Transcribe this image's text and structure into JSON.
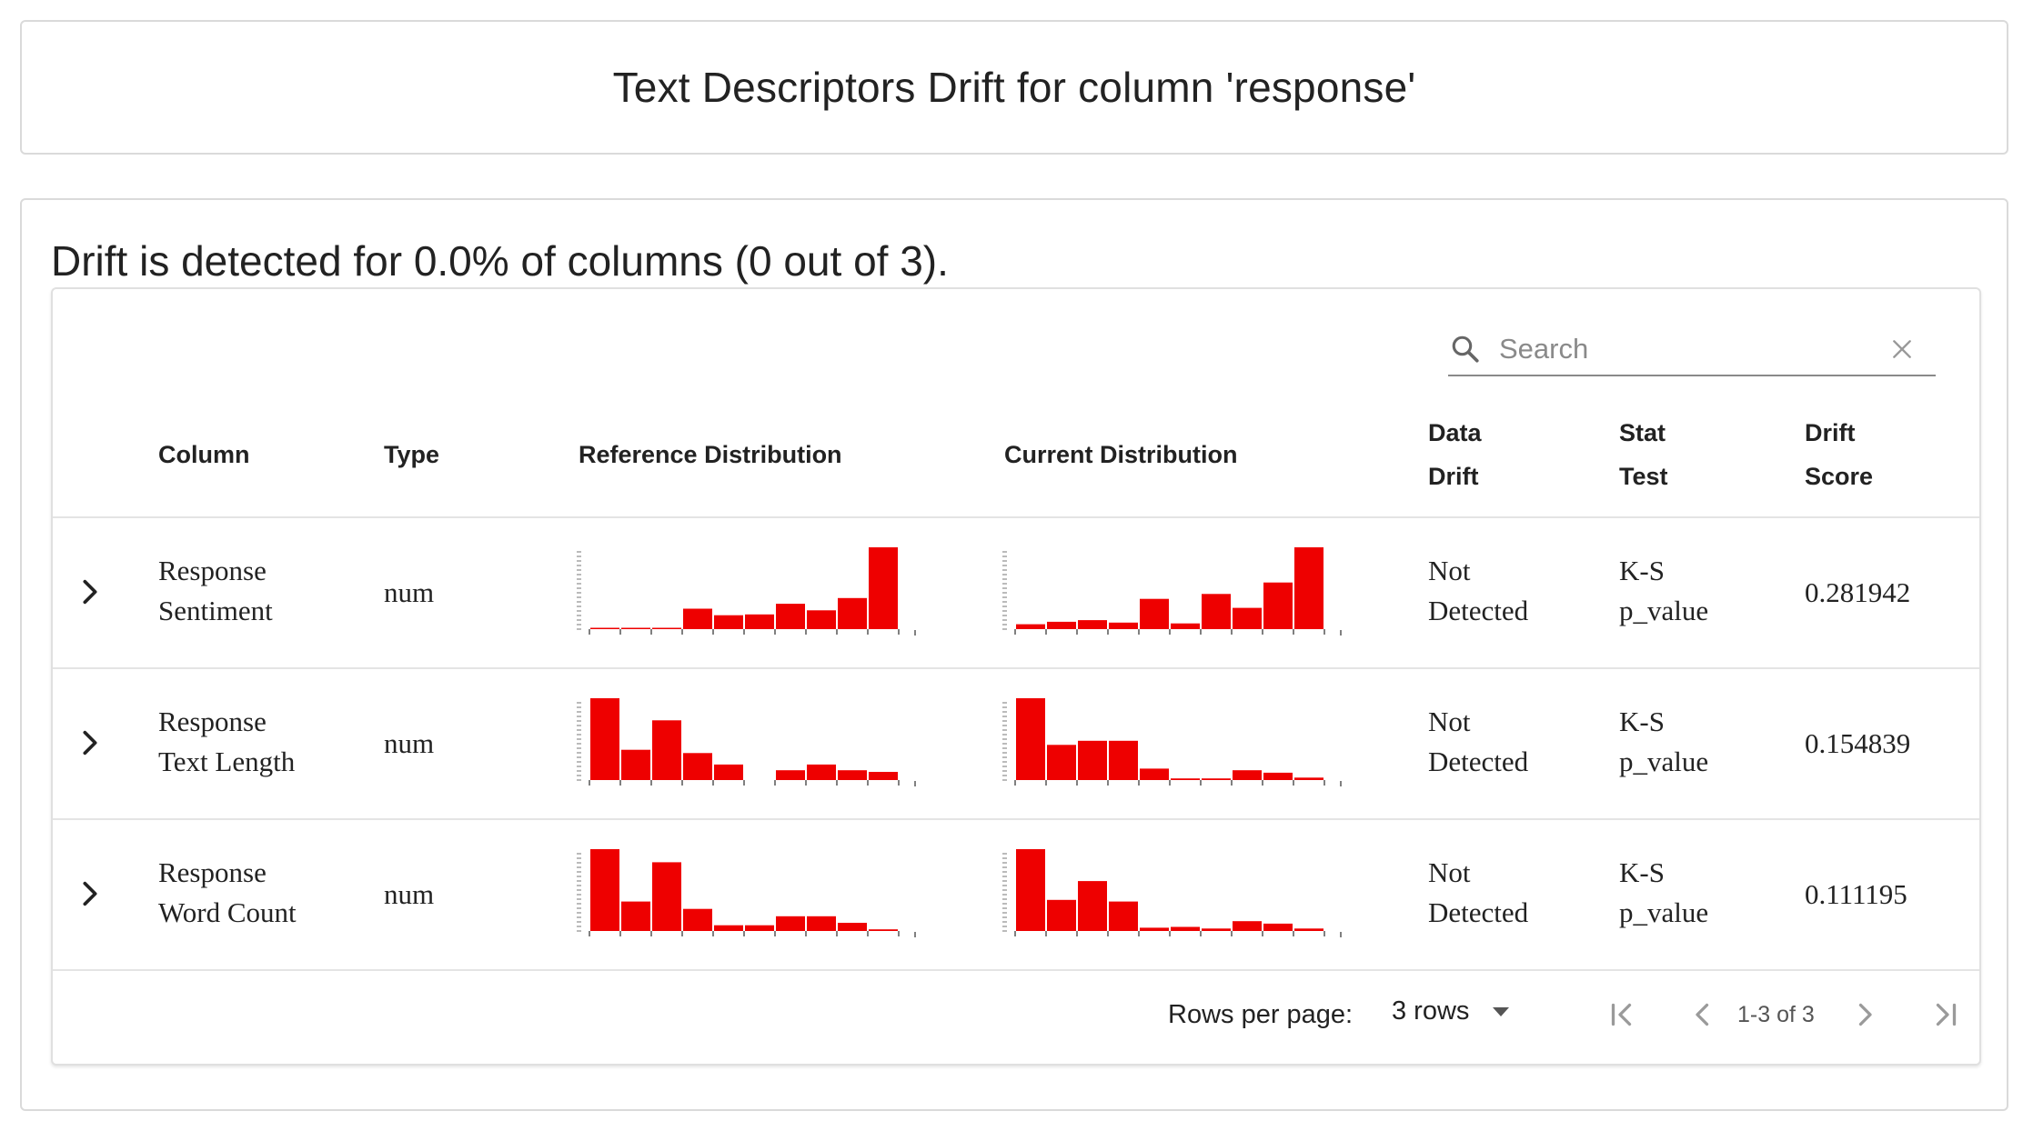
{
  "title": "Text Descriptors Drift for column 'response'",
  "summary": "Drift is detected for 0.0% of columns (0 out of 3).",
  "search": {
    "placeholder": "Search",
    "value": ""
  },
  "columns": {
    "column": "Column",
    "type": "Type",
    "reference_distribution": "Reference Distribution",
    "current_distribution": "Current Distribution",
    "data_drift": [
      "Data",
      "Drift"
    ],
    "stat_test": [
      "Stat",
      "Test"
    ],
    "drift_score": [
      "Drift",
      "Score"
    ]
  },
  "rows": [
    {
      "column": [
        "Response",
        "Sentiment"
      ],
      "type": "num",
      "reference_hist": [
        1,
        1,
        1,
        25,
        17,
        18,
        31,
        23,
        38,
        100
      ],
      "current_hist": [
        6,
        9,
        11,
        8,
        37,
        7,
        43,
        26,
        57,
        100
      ],
      "data_drift": [
        "Not",
        "Detected"
      ],
      "stat_test": [
        "K-S",
        "p_value"
      ],
      "drift_score": "0.281942"
    },
    {
      "column": [
        "Response",
        "Text Length"
      ],
      "type": "num",
      "reference_hist": [
        100,
        37,
        73,
        33,
        19,
        0,
        12,
        19,
        12,
        10
      ],
      "current_hist": [
        100,
        43,
        48,
        48,
        14,
        2,
        2,
        12,
        9,
        3
      ],
      "data_drift": [
        "Not",
        "Detected"
      ],
      "stat_test": [
        "K-S",
        "p_value"
      ],
      "drift_score": "0.154839"
    },
    {
      "column": [
        "Response",
        "Word Count"
      ],
      "type": "num",
      "reference_hist": [
        100,
        36,
        84,
        27,
        7,
        7,
        18,
        18,
        10,
        2
      ],
      "current_hist": [
        100,
        38,
        61,
        36,
        4,
        5,
        3,
        12,
        9,
        3
      ],
      "data_drift": [
        "Not",
        "Detected"
      ],
      "stat_test": [
        "K-S",
        "p_value"
      ],
      "drift_score": "0.111195"
    }
  ],
  "footer": {
    "rows_per_page_label": "Rows per page:",
    "rows_per_page_value": "3 rows",
    "page_info": "1-3 of 3"
  },
  "colors": {
    "bar": "#ee0000",
    "border": "#dadada",
    "divider": "#e4e4e4",
    "text": "#222222"
  },
  "icons": {
    "search": "search-icon",
    "clear": "close-icon",
    "expand": "chevron-right-icon",
    "dropdown": "arrow-drop-down-icon",
    "first": "first-page-icon",
    "prev": "chevron-left-icon",
    "next": "chevron-right-icon",
    "last": "last-page-icon"
  }
}
